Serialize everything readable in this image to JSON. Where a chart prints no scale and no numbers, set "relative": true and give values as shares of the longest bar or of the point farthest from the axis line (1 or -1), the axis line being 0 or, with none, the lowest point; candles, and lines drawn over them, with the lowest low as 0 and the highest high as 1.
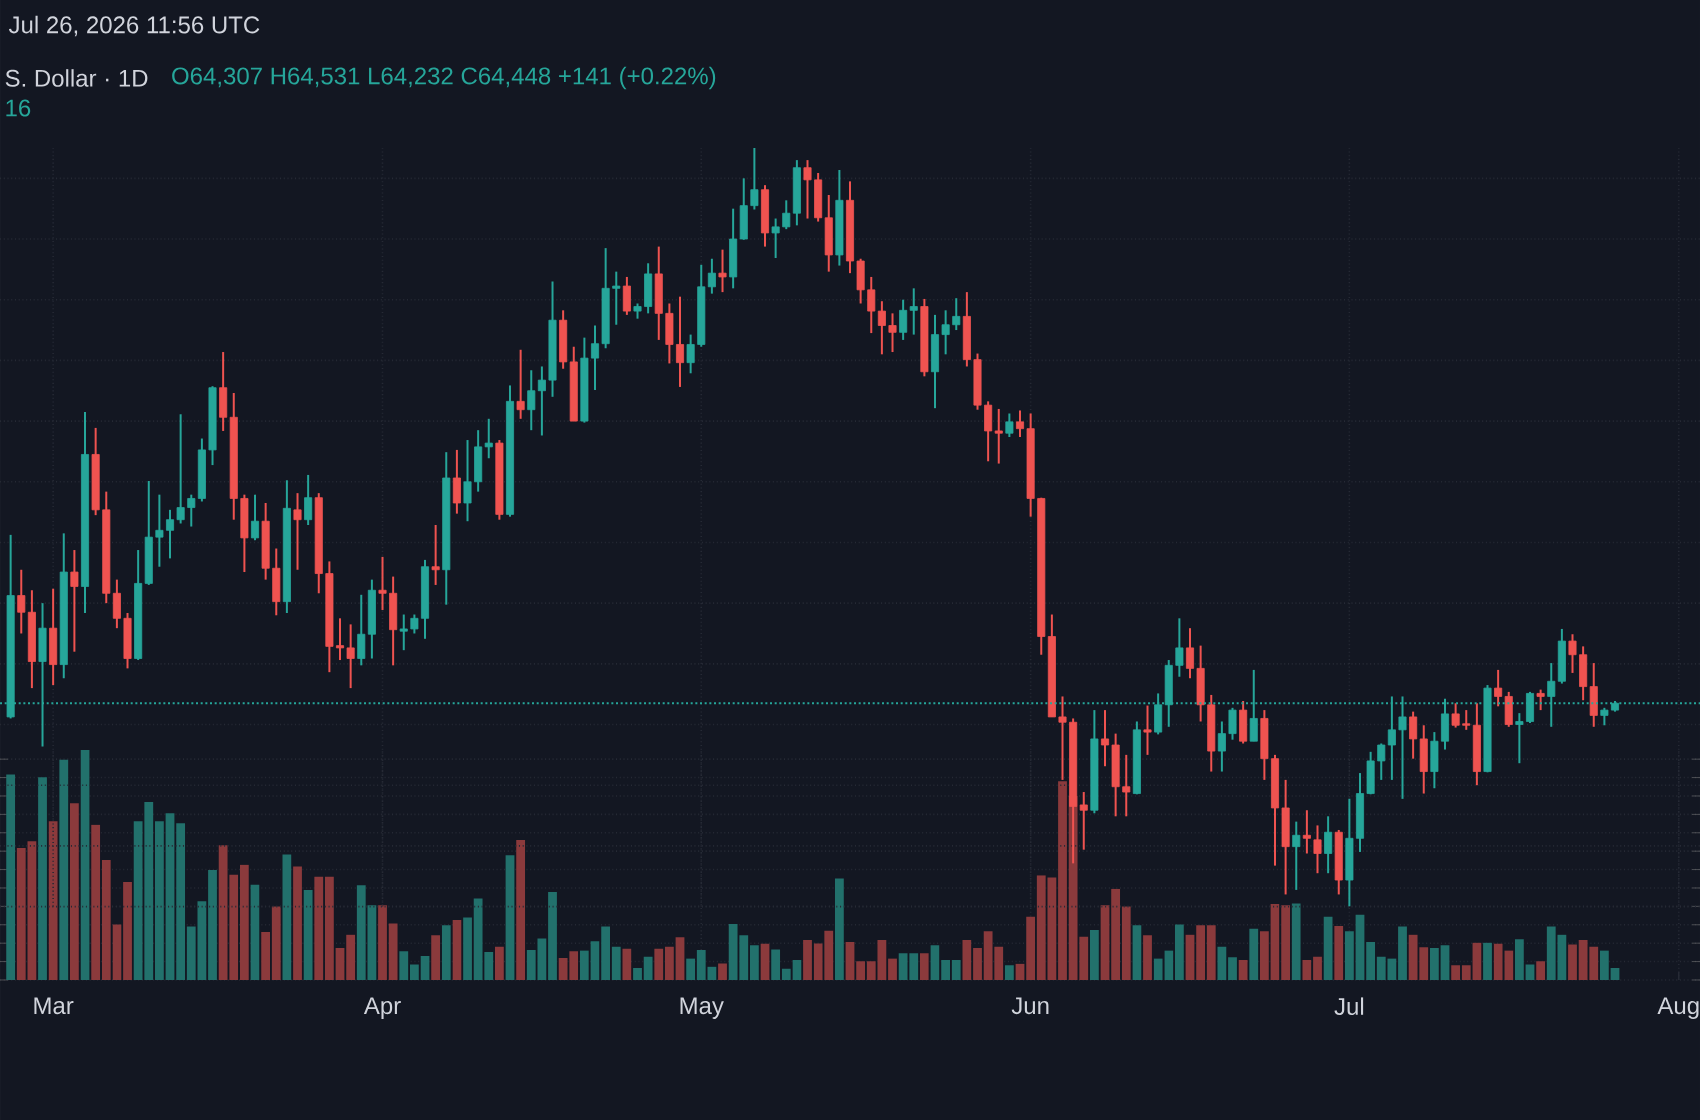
{
  "chart_data": [
    {
      "type": "candlestick",
      "title": "S. Dollar · 1D",
      "annotations": [
        "Jul 26, 2026 11:56 UTC",
        "O64,307 H64,531 L64,232 C64,448 +141 (+0.22%)",
        "16"
      ],
      "relative": true,
      "tick_labels": false,
      "grid": true,
      "xlim": [
        "2026-02-24",
        "2026-08-03"
      ],
      "xticks": [
        {
          "value": "2026-03-01",
          "label": null
        },
        {
          "value": "2026-04-01",
          "label": null
        },
        {
          "value": "2026-05-01",
          "label": null
        },
        {
          "value": "2026-06-01",
          "label": null
        },
        {
          "value": "2026-07-01",
          "label": null
        },
        {
          "value": "2026-08-01",
          "label": null
        }
      ],
      "ref_lines": [
        {
          "axis": "y",
          "value": 0.268,
          "color": "#26a69a",
          "line_style": "dotted"
        }
      ],
      "x": [
        "2026-02-25",
        "2026-02-26",
        "2026-02-27",
        "2026-02-28",
        "2026-03-01",
        "2026-03-02",
        "2026-03-03",
        "2026-03-04",
        "2026-03-05",
        "2026-03-06",
        "2026-03-07",
        "2026-03-08",
        "2026-03-09",
        "2026-03-10",
        "2026-03-11",
        "2026-03-12",
        "2026-03-13",
        "2026-03-14",
        "2026-03-15",
        "2026-03-16",
        "2026-03-17",
        "2026-03-18",
        "2026-03-19",
        "2026-03-20",
        "2026-03-21",
        "2026-03-22",
        "2026-03-23",
        "2026-03-24",
        "2026-03-25",
        "2026-03-26",
        "2026-03-27",
        "2026-03-28",
        "2026-03-29",
        "2026-03-30",
        "2026-03-31",
        "2026-04-01",
        "2026-04-02",
        "2026-04-03",
        "2026-04-04",
        "2026-04-05",
        "2026-04-06",
        "2026-04-07",
        "2026-04-08",
        "2026-04-09",
        "2026-04-10",
        "2026-04-11",
        "2026-04-12",
        "2026-04-13",
        "2026-04-14",
        "2026-04-15",
        "2026-04-16",
        "2026-04-17",
        "2026-04-18",
        "2026-04-19",
        "2026-04-20",
        "2026-04-21",
        "2026-04-22",
        "2026-04-23",
        "2026-04-24",
        "2026-04-25",
        "2026-04-26",
        "2026-04-27",
        "2026-04-28",
        "2026-04-29",
        "2026-04-30",
        "2026-05-01",
        "2026-05-02",
        "2026-05-03",
        "2026-05-04",
        "2026-05-05",
        "2026-05-06",
        "2026-05-07",
        "2026-05-08",
        "2026-05-09",
        "2026-05-10",
        "2026-05-11",
        "2026-05-12",
        "2026-05-13",
        "2026-05-14",
        "2026-05-15",
        "2026-05-16",
        "2026-05-17",
        "2026-05-18",
        "2026-05-19",
        "2026-05-20",
        "2026-05-21",
        "2026-05-22",
        "2026-05-23",
        "2026-05-24",
        "2026-05-25",
        "2026-05-26",
        "2026-05-27",
        "2026-05-28",
        "2026-05-29",
        "2026-05-30",
        "2026-05-31",
        "2026-06-01",
        "2026-06-02",
        "2026-06-03",
        "2026-06-04",
        "2026-06-05",
        "2026-06-06",
        "2026-06-07",
        "2026-06-08",
        "2026-06-09",
        "2026-06-10",
        "2026-06-11",
        "2026-06-12",
        "2026-06-13",
        "2026-06-14",
        "2026-06-15",
        "2026-06-16",
        "2026-06-17",
        "2026-06-18",
        "2026-06-19",
        "2026-06-20",
        "2026-06-21",
        "2026-06-22",
        "2026-06-23",
        "2026-06-24",
        "2026-06-25",
        "2026-06-26",
        "2026-06-27",
        "2026-06-28",
        "2026-06-29",
        "2026-06-30",
        "2026-07-01",
        "2026-07-02",
        "2026-07-03",
        "2026-07-04",
        "2026-07-05",
        "2026-07-06",
        "2026-07-07",
        "2026-07-08",
        "2026-07-09",
        "2026-07-10",
        "2026-07-11",
        "2026-07-12",
        "2026-07-13",
        "2026-07-14",
        "2026-07-15",
        "2026-07-16",
        "2026-07-17",
        "2026-07-18",
        "2026-07-19",
        "2026-07-20",
        "2026-07-21",
        "2026-07-22",
        "2026-07-23",
        "2026-07-24",
        "2026-07-25",
        "2026-07-26"
      ],
      "ohlc": [
        [
          0.25,
          0.49,
          0.248,
          0.41
        ],
        [
          0.41,
          0.444,
          0.36,
          0.388
        ],
        [
          0.388,
          0.417,
          0.288,
          0.323
        ],
        [
          0.323,
          0.4,
          0.211,
          0.367
        ],
        [
          0.367,
          0.419,
          0.292,
          0.319
        ],
        [
          0.319,
          0.492,
          0.301,
          0.441
        ],
        [
          0.441,
          0.47,
          0.336,
          0.422
        ],
        [
          0.422,
          0.652,
          0.387,
          0.596
        ],
        [
          0.596,
          0.631,
          0.516,
          0.523
        ],
        [
          0.523,
          0.547,
          0.4,
          0.413
        ],
        [
          0.413,
          0.431,
          0.367,
          0.38
        ],
        [
          0.38,
          0.387,
          0.314,
          0.327
        ],
        [
          0.327,
          0.47,
          0.325,
          0.426
        ],
        [
          0.426,
          0.561,
          0.424,
          0.487
        ],
        [
          0.487,
          0.543,
          0.448,
          0.496
        ],
        [
          0.496,
          0.523,
          0.459,
          0.51
        ],
        [
          0.51,
          0.649,
          0.505,
          0.526
        ],
        [
          0.526,
          0.543,
          0.501,
          0.538
        ],
        [
          0.538,
          0.617,
          0.534,
          0.602
        ],
        [
          0.602,
          0.686,
          0.582,
          0.684
        ],
        [
          0.684,
          0.731,
          0.627,
          0.645
        ],
        [
          0.645,
          0.677,
          0.51,
          0.538
        ],
        [
          0.538,
          0.543,
          0.441,
          0.486
        ],
        [
          0.486,
          0.543,
          0.483,
          0.508
        ],
        [
          0.508,
          0.532,
          0.431,
          0.446
        ],
        [
          0.446,
          0.472,
          0.384,
          0.402
        ],
        [
          0.402,
          0.562,
          0.387,
          0.525
        ],
        [
          0.523,
          0.545,
          0.444,
          0.51
        ],
        [
          0.51,
          0.569,
          0.503,
          0.539
        ],
        [
          0.539,
          0.545,
          0.413,
          0.439
        ],
        [
          0.439,
          0.455,
          0.309,
          0.343
        ],
        [
          0.344,
          0.38,
          0.325,
          0.341
        ],
        [
          0.341,
          0.372,
          0.288,
          0.327
        ],
        [
          0.327,
          0.411,
          0.318,
          0.359
        ],
        [
          0.359,
          0.431,
          0.327,
          0.417
        ],
        [
          0.417,
          0.461,
          0.391,
          0.413
        ],
        [
          0.413,
          0.435,
          0.318,
          0.365
        ],
        [
          0.363,
          0.385,
          0.338,
          0.366
        ],
        [
          0.366,
          0.385,
          0.36,
          0.38
        ],
        [
          0.38,
          0.457,
          0.353,
          0.448
        ],
        [
          0.448,
          0.503,
          0.424,
          0.444
        ],
        [
          0.444,
          0.599,
          0.398,
          0.565
        ],
        [
          0.565,
          0.602,
          0.518,
          0.532
        ],
        [
          0.532,
          0.615,
          0.508,
          0.56
        ],
        [
          0.56,
          0.628,
          0.547,
          0.606
        ],
        [
          0.606,
          0.643,
          0.591,
          0.611
        ],
        [
          0.611,
          0.615,
          0.51,
          0.517
        ],
        [
          0.517,
          0.687,
          0.514,
          0.666
        ],
        [
          0.666,
          0.734,
          0.643,
          0.655
        ],
        [
          0.655,
          0.707,
          0.628,
          0.68
        ],
        [
          0.68,
          0.712,
          0.621,
          0.694
        ],
        [
          0.694,
          0.824,
          0.672,
          0.773
        ],
        [
          0.773,
          0.786,
          0.709,
          0.718
        ],
        [
          0.718,
          0.738,
          0.64,
          0.64
        ],
        [
          0.64,
          0.75,
          0.638,
          0.723
        ],
        [
          0.723,
          0.766,
          0.681,
          0.742
        ],
        [
          0.742,
          0.868,
          0.736,
          0.815
        ],
        [
          0.815,
          0.837,
          0.767,
          0.818
        ],
        [
          0.818,
          0.83,
          0.78,
          0.785
        ],
        [
          0.785,
          0.795,
          0.775,
          0.791
        ],
        [
          0.791,
          0.848,
          0.782,
          0.834
        ],
        [
          0.834,
          0.87,
          0.747,
          0.782
        ],
        [
          0.782,
          0.795,
          0.716,
          0.741
        ],
        [
          0.741,
          0.804,
          0.685,
          0.717
        ],
        [
          0.717,
          0.754,
          0.703,
          0.741
        ],
        [
          0.741,
          0.846,
          0.738,
          0.817
        ],
        [
          0.817,
          0.854,
          0.808,
          0.835
        ],
        [
          0.835,
          0.866,
          0.81,
          0.83
        ],
        [
          0.83,
          0.92,
          0.815,
          0.88
        ],
        [
          0.88,
          0.96,
          0.879,
          0.924
        ],
        [
          0.924,
          1,
          0.919,
          0.945
        ],
        [
          0.945,
          0.951,
          0.87,
          0.888
        ],
        [
          0.888,
          0.907,
          0.855,
          0.896
        ],
        [
          0.896,
          0.931,
          0.893,
          0.914
        ],
        [
          0.914,
          0.984,
          0.898,
          0.974
        ],
        [
          0.974,
          0.984,
          0.907,
          0.958
        ],
        [
          0.958,
          0.967,
          0.903,
          0.908
        ],
        [
          0.908,
          0.938,
          0.837,
          0.859
        ],
        [
          0.859,
          0.971,
          0.845,
          0.931
        ],
        [
          0.931,
          0.956,
          0.835,
          0.851
        ],
        [
          0.851,
          0.854,
          0.795,
          0.813
        ],
        [
          0.813,
          0.83,
          0.756,
          0.785
        ],
        [
          0.785,
          0.798,
          0.728,
          0.766
        ],
        [
          0.766,
          0.782,
          0.731,
          0.757
        ],
        [
          0.757,
          0.8,
          0.747,
          0.786
        ],
        [
          0.786,
          0.815,
          0.754,
          0.791
        ],
        [
          0.791,
          0.801,
          0.699,
          0.705
        ],
        [
          0.705,
          0.78,
          0.657,
          0.754
        ],
        [
          0.754,
          0.786,
          0.728,
          0.767
        ],
        [
          0.767,
          0.802,
          0.76,
          0.778
        ],
        [
          0.778,
          0.81,
          0.712,
          0.721
        ],
        [
          0.721,
          0.729,
          0.655,
          0.661
        ],
        [
          0.661,
          0.666,
          0.587,
          0.627
        ],
        [
          0.627,
          0.656,
          0.584,
          0.624
        ],
        [
          0.624,
          0.65,
          0.619,
          0.639
        ],
        [
          0.639,
          0.654,
          0.619,
          0.63
        ],
        [
          0.63,
          0.65,
          0.514,
          0.538
        ],
        [
          0.538,
          0.539,
          0.332,
          0.356
        ],
        [
          0.356,
          0.385,
          0.25,
          0.25
        ],
        [
          0.25,
          0.277,
          0.167,
          0.243
        ],
        [
          0.243,
          0.248,
          0.057,
          0.132
        ],
        [
          0.134,
          0.151,
          0.075,
          0.127
        ],
        [
          0.127,
          0.259,
          0.123,
          0.221
        ],
        [
          0.221,
          0.259,
          0.185,
          0.213
        ],
        [
          0.213,
          0.228,
          0.119,
          0.158
        ],
        [
          0.158,
          0.2,
          0.119,
          0.151
        ],
        [
          0.149,
          0.244,
          0.148,
          0.233
        ],
        [
          0.233,
          0.265,
          0.2,
          0.23
        ],
        [
          0.23,
          0.281,
          0.227,
          0.266
        ],
        [
          0.266,
          0.325,
          0.237,
          0.318
        ],
        [
          0.318,
          0.38,
          0.303,
          0.341
        ],
        [
          0.341,
          0.367,
          0.301,
          0.314
        ],
        [
          0.314,
          0.344,
          0.244,
          0.266
        ],
        [
          0.266,
          0.279,
          0.178,
          0.205
        ],
        [
          0.205,
          0.244,
          0.178,
          0.228
        ],
        [
          0.228,
          0.262,
          0.22,
          0.259
        ],
        [
          0.259,
          0.271,
          0.215,
          0.218
        ],
        [
          0.218,
          0.312,
          0.218,
          0.248
        ],
        [
          0.248,
          0.259,
          0.167,
          0.195
        ],
        [
          0.195,
          0.2,
          0.054,
          0.13
        ],
        [
          0.13,
          0.167,
          0.016,
          0.079
        ],
        [
          0.079,
          0.112,
          0.022,
          0.094
        ],
        [
          0.094,
          0.127,
          0.07,
          0.09
        ],
        [
          0.088,
          0.107,
          0.044,
          0.07
        ],
        [
          0.07,
          0.119,
          0.044,
          0.098
        ],
        [
          0.098,
          0.101,
          0.016,
          0.035
        ],
        [
          0.035,
          0.142,
          0,
          0.09
        ],
        [
          0.09,
          0.176,
          0.072,
          0.149
        ],
        [
          0.149,
          0.204,
          0.148,
          0.192
        ],
        [
          0.192,
          0.215,
          0.167,
          0.213
        ],
        [
          0.213,
          0.277,
          0.167,
          0.233
        ],
        [
          0.233,
          0.277,
          0.142,
          0.25
        ],
        [
          0.25,
          0.257,
          0.195,
          0.221
        ],
        [
          0.221,
          0.239,
          0.149,
          0.178
        ],
        [
          0.178,
          0.23,
          0.156,
          0.218
        ],
        [
          0.218,
          0.274,
          0.207,
          0.254
        ],
        [
          0.254,
          0.268,
          0.236,
          0.239
        ],
        [
          0.241,
          0.259,
          0.233,
          0.239
        ],
        [
          0.239,
          0.268,
          0.16,
          0.178
        ],
        [
          0.178,
          0.292,
          0.177,
          0.288
        ],
        [
          0.288,
          0.312,
          0.264,
          0.277
        ],
        [
          0.277,
          0.283,
          0.237,
          0.24
        ],
        [
          0.24,
          0.255,
          0.189,
          0.244
        ],
        [
          0.244,
          0.283,
          0.242,
          0.281
        ],
        [
          0.281,
          0.286,
          0.259,
          0.277
        ],
        [
          0.277,
          0.321,
          0.237,
          0.297
        ],
        [
          0.297,
          0.366,
          0.294,
          0.35
        ],
        [
          0.35,
          0.359,
          0.308,
          0.332
        ],
        [
          0.332,
          0.343,
          0.272,
          0.29
        ],
        [
          0.29,
          0.321,
          0.237,
          0.252
        ],
        [
          0.252,
          0.262,
          0.239,
          0.259
        ],
        [
          0.259,
          0.271,
          0.257,
          0.268
        ]
      ],
      "colors": [
        "#26a69a",
        "#ef5350",
        "#ef5350",
        "#26a69a",
        "#ef5350",
        "#26a69a",
        "#ef5350",
        "#26a69a",
        "#ef5350",
        "#ef5350",
        "#ef5350",
        "#ef5350",
        "#26a69a",
        "#26a69a",
        "#26a69a",
        "#26a69a",
        "#26a69a",
        "#26a69a",
        "#26a69a",
        "#26a69a",
        "#ef5350",
        "#ef5350",
        "#ef5350",
        "#26a69a",
        "#ef5350",
        "#ef5350",
        "#26a69a",
        "#ef5350",
        "#26a69a",
        "#ef5350",
        "#ef5350",
        "#ef5350",
        "#ef5350",
        "#26a69a",
        "#26a69a",
        "#ef5350",
        "#ef5350",
        "#26a69a",
        "#26a69a",
        "#26a69a",
        "#ef5350",
        "#26a69a",
        "#ef5350",
        "#26a69a",
        "#26a69a",
        "#26a69a",
        "#ef5350",
        "#26a69a",
        "#ef5350",
        "#26a69a",
        "#26a69a",
        "#26a69a",
        "#ef5350",
        "#ef5350",
        "#26a69a",
        "#26a69a",
        "#26a69a",
        "#26a69a",
        "#ef5350",
        "#26a69a",
        "#26a69a",
        "#ef5350",
        "#ef5350",
        "#ef5350",
        "#26a69a",
        "#26a69a",
        "#26a69a",
        "#ef5350",
        "#26a69a",
        "#26a69a",
        "#26a69a",
        "#ef5350",
        "#26a69a",
        "#26a69a",
        "#26a69a",
        "#ef5350",
        "#ef5350",
        "#ef5350",
        "#26a69a",
        "#ef5350",
        "#ef5350",
        "#ef5350",
        "#ef5350",
        "#ef5350",
        "#26a69a",
        "#26a69a",
        "#ef5350",
        "#26a69a",
        "#26a69a",
        "#26a69a",
        "#ef5350",
        "#ef5350",
        "#ef5350",
        "#ef5350",
        "#26a69a",
        "#ef5350",
        "#ef5350",
        "#ef5350",
        "#ef5350",
        "#ef5350",
        "#ef5350",
        "#ef5350",
        "#26a69a",
        "#ef5350",
        "#ef5350",
        "#ef5350",
        "#26a69a",
        "#ef5350",
        "#26a69a",
        "#26a69a",
        "#26a69a",
        "#ef5350",
        "#ef5350",
        "#ef5350",
        "#26a69a",
        "#26a69a",
        "#ef5350",
        "#26a69a",
        "#ef5350",
        "#ef5350",
        "#ef5350",
        "#26a69a",
        "#ef5350",
        "#ef5350",
        "#26a69a",
        "#ef5350",
        "#26a69a",
        "#26a69a",
        "#26a69a",
        "#26a69a",
        "#26a69a",
        "#26a69a",
        "#ef5350",
        "#ef5350",
        "#26a69a",
        "#26a69a",
        "#ef5350",
        "#ef5350",
        "#ef5350",
        "#26a69a",
        "#ef5350",
        "#ef5350",
        "#26a69a",
        "#26a69a",
        "#ef5350",
        "#26a69a",
        "#26a69a",
        "#ef5350",
        "#ef5350",
        "#ef5350",
        "#26a69a",
        "#26a69a"
      ]
    },
    {
      "type": "bar",
      "relative": true,
      "grid": true,
      "xlim": [
        "2026-02-24",
        "2026-08-03"
      ],
      "xticks": [
        {
          "value": "2026-03-01",
          "label": "Mar"
        },
        {
          "value": "2026-04-01",
          "label": "Apr"
        },
        {
          "value": "2026-05-01",
          "label": "May"
        },
        {
          "value": "2026-06-01",
          "label": "Jun"
        },
        {
          "value": "2026-07-01",
          "label": "Jul"
        },
        {
          "value": "2026-08-01",
          "label": "Aug"
        }
      ],
      "x": [
        "2026-02-25",
        "2026-02-26",
        "2026-02-27",
        "2026-02-28",
        "2026-03-01",
        "2026-03-02",
        "2026-03-03",
        "2026-03-04",
        "2026-03-05",
        "2026-03-06",
        "2026-03-07",
        "2026-03-08",
        "2026-03-09",
        "2026-03-10",
        "2026-03-11",
        "2026-03-12",
        "2026-03-13",
        "2026-03-14",
        "2026-03-15",
        "2026-03-16",
        "2026-03-17",
        "2026-03-18",
        "2026-03-19",
        "2026-03-20",
        "2026-03-21",
        "2026-03-22",
        "2026-03-23",
        "2026-03-24",
        "2026-03-25",
        "2026-03-26",
        "2026-03-27",
        "2026-03-28",
        "2026-03-29",
        "2026-03-30",
        "2026-03-31",
        "2026-04-01",
        "2026-04-02",
        "2026-04-03",
        "2026-04-04",
        "2026-04-05",
        "2026-04-06",
        "2026-04-07",
        "2026-04-08",
        "2026-04-09",
        "2026-04-10",
        "2026-04-11",
        "2026-04-12",
        "2026-04-13",
        "2026-04-14",
        "2026-04-15",
        "2026-04-16",
        "2026-04-17",
        "2026-04-18",
        "2026-04-19",
        "2026-04-20",
        "2026-04-21",
        "2026-04-22",
        "2026-04-23",
        "2026-04-24",
        "2026-04-25",
        "2026-04-26",
        "2026-04-27",
        "2026-04-28",
        "2026-04-29",
        "2026-04-30",
        "2026-05-01",
        "2026-05-02",
        "2026-05-03",
        "2026-05-04",
        "2026-05-05",
        "2026-05-06",
        "2026-05-07",
        "2026-05-08",
        "2026-05-09",
        "2026-05-10",
        "2026-05-11",
        "2026-05-12",
        "2026-05-13",
        "2026-05-14",
        "2026-05-15",
        "2026-05-16",
        "2026-05-17",
        "2026-05-18",
        "2026-05-19",
        "2026-05-20",
        "2026-05-21",
        "2026-05-22",
        "2026-05-23",
        "2026-05-24",
        "2026-05-25",
        "2026-05-26",
        "2026-05-27",
        "2026-05-28",
        "2026-05-29",
        "2026-05-30",
        "2026-05-31",
        "2026-06-01",
        "2026-06-02",
        "2026-06-03",
        "2026-06-04",
        "2026-06-05",
        "2026-06-06",
        "2026-06-07",
        "2026-06-08",
        "2026-06-09",
        "2026-06-10",
        "2026-06-11",
        "2026-06-12",
        "2026-06-13",
        "2026-06-14",
        "2026-06-15",
        "2026-06-16",
        "2026-06-17",
        "2026-06-18",
        "2026-06-19",
        "2026-06-20",
        "2026-06-21",
        "2026-06-22",
        "2026-06-23",
        "2026-06-24",
        "2026-06-25",
        "2026-06-26",
        "2026-06-27",
        "2026-06-28",
        "2026-06-29",
        "2026-06-30",
        "2026-07-01",
        "2026-07-02",
        "2026-07-03",
        "2026-07-04",
        "2026-07-05",
        "2026-07-06",
        "2026-07-07",
        "2026-07-08",
        "2026-07-09",
        "2026-07-10",
        "2026-07-11",
        "2026-07-12",
        "2026-07-13",
        "2026-07-14",
        "2026-07-15",
        "2026-07-16",
        "2026-07-17",
        "2026-07-18",
        "2026-07-19",
        "2026-07-20",
        "2026-07-21",
        "2026-07-22",
        "2026-07-23",
        "2026-07-24",
        "2026-07-25",
        "2026-07-26"
      ],
      "values": [
        0.893,
        0.574,
        0.603,
        0.881,
        0.69,
        0.957,
        0.768,
        1,
        0.675,
        0.522,
        0.241,
        0.426,
        0.69,
        0.774,
        0.69,
        0.725,
        0.681,
        0.232,
        0.342,
        0.478,
        0.586,
        0.458,
        0.501,
        0.414,
        0.209,
        0.319,
        0.545,
        0.493,
        0.391,
        0.449,
        0.449,
        0.139,
        0.197,
        0.412,
        0.325,
        0.325,
        0.246,
        0.125,
        0.067,
        0.104,
        0.194,
        0.238,
        0.261,
        0.272,
        0.354,
        0.122,
        0.145,
        0.542,
        0.609,
        0.13,
        0.18,
        0.383,
        0.096,
        0.125,
        0.128,
        0.168,
        0.232,
        0.145,
        0.136,
        0.052,
        0.101,
        0.136,
        0.145,
        0.186,
        0.093,
        0.13,
        0.058,
        0.072,
        0.243,
        0.194,
        0.151,
        0.157,
        0.133,
        0.049,
        0.087,
        0.174,
        0.159,
        0.214,
        0.441,
        0.165,
        0.081,
        0.081,
        0.174,
        0.093,
        0.116,
        0.116,
        0.116,
        0.151,
        0.087,
        0.087,
        0.174,
        0.139,
        0.212,
        0.145,
        0.064,
        0.07,
        0.275,
        0.455,
        0.446,
        0.864,
        0.8,
        0.188,
        0.217,
        0.325,
        0.397,
        0.319,
        0.238,
        0.194,
        0.093,
        0.128,
        0.241,
        0.197,
        0.238,
        0.238,
        0.145,
        0.099,
        0.087,
        0.223,
        0.212,
        0.33,
        0.325,
        0.333,
        0.087,
        0.101,
        0.275,
        0.235,
        0.212,
        0.284,
        0.165,
        0.101,
        0.093,
        0.232,
        0.197,
        0.142,
        0.139,
        0.151,
        0.064,
        0.064,
        0.162,
        0.162,
        0.157,
        0.128,
        0.177,
        0.067,
        0.081,
        0.232,
        0.197,
        0.154,
        0.174,
        0.145,
        0.128,
        0.052
      ],
      "colors": [
        "#22716c",
        "#8b3a3c",
        "#8b3a3c",
        "#22716c",
        "#8b3a3c",
        "#22716c",
        "#8b3a3c",
        "#22716c",
        "#8b3a3c",
        "#8b3a3c",
        "#8b3a3c",
        "#8b3a3c",
        "#22716c",
        "#22716c",
        "#22716c",
        "#22716c",
        "#22716c",
        "#22716c",
        "#22716c",
        "#22716c",
        "#8b3a3c",
        "#8b3a3c",
        "#8b3a3c",
        "#22716c",
        "#8b3a3c",
        "#8b3a3c",
        "#22716c",
        "#8b3a3c",
        "#22716c",
        "#8b3a3c",
        "#8b3a3c",
        "#8b3a3c",
        "#8b3a3c",
        "#22716c",
        "#22716c",
        "#8b3a3c",
        "#8b3a3c",
        "#22716c",
        "#22716c",
        "#22716c",
        "#8b3a3c",
        "#22716c",
        "#8b3a3c",
        "#22716c",
        "#22716c",
        "#22716c",
        "#8b3a3c",
        "#22716c",
        "#8b3a3c",
        "#22716c",
        "#22716c",
        "#22716c",
        "#8b3a3c",
        "#8b3a3c",
        "#22716c",
        "#22716c",
        "#22716c",
        "#22716c",
        "#8b3a3c",
        "#22716c",
        "#22716c",
        "#8b3a3c",
        "#8b3a3c",
        "#8b3a3c",
        "#22716c",
        "#22716c",
        "#22716c",
        "#8b3a3c",
        "#22716c",
        "#22716c",
        "#22716c",
        "#8b3a3c",
        "#22716c",
        "#22716c",
        "#22716c",
        "#8b3a3c",
        "#8b3a3c",
        "#8b3a3c",
        "#22716c",
        "#8b3a3c",
        "#8b3a3c",
        "#8b3a3c",
        "#8b3a3c",
        "#8b3a3c",
        "#22716c",
        "#22716c",
        "#8b3a3c",
        "#22716c",
        "#22716c",
        "#22716c",
        "#8b3a3c",
        "#8b3a3c",
        "#8b3a3c",
        "#8b3a3c",
        "#22716c",
        "#8b3a3c",
        "#8b3a3c",
        "#8b3a3c",
        "#8b3a3c",
        "#8b3a3c",
        "#8b3a3c",
        "#8b3a3c",
        "#22716c",
        "#8b3a3c",
        "#8b3a3c",
        "#8b3a3c",
        "#22716c",
        "#8b3a3c",
        "#22716c",
        "#22716c",
        "#22716c",
        "#8b3a3c",
        "#8b3a3c",
        "#8b3a3c",
        "#22716c",
        "#22716c",
        "#8b3a3c",
        "#22716c",
        "#8b3a3c",
        "#8b3a3c",
        "#8b3a3c",
        "#22716c",
        "#8b3a3c",
        "#8b3a3c",
        "#22716c",
        "#8b3a3c",
        "#22716c",
        "#22716c",
        "#22716c",
        "#22716c",
        "#22716c",
        "#22716c",
        "#8b3a3c",
        "#8b3a3c",
        "#22716c",
        "#22716c",
        "#8b3a3c",
        "#8b3a3c",
        "#8b3a3c",
        "#22716c",
        "#8b3a3c",
        "#8b3a3c",
        "#22716c",
        "#22716c",
        "#8b3a3c",
        "#22716c",
        "#22716c",
        "#8b3a3c",
        "#8b3a3c",
        "#8b3a3c",
        "#22716c",
        "#22716c"
      ]
    }
  ]
}
